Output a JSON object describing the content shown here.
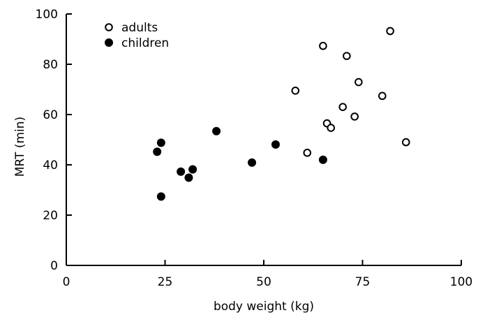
{
  "chart_data": {
    "type": "scatter",
    "title": "",
    "xlabel": "body weight (kg)",
    "ylabel": "MRT (min)",
    "xlim": [
      0,
      100
    ],
    "ylim": [
      0,
      100
    ],
    "xticks": [
      0,
      25,
      50,
      75,
      100
    ],
    "yticks": [
      0,
      20,
      40,
      60,
      80,
      100
    ],
    "grid": false,
    "legend_position": "top-left",
    "series": [
      {
        "name": "adults",
        "marker": "open-circle",
        "color": "#000000",
        "points": [
          {
            "x": 58,
            "y": 69.5
          },
          {
            "x": 61,
            "y": 44.8
          },
          {
            "x": 65,
            "y": 87.3
          },
          {
            "x": 66,
            "y": 56.5
          },
          {
            "x": 67,
            "y": 54.7
          },
          {
            "x": 70,
            "y": 63.0
          },
          {
            "x": 71,
            "y": 83.3
          },
          {
            "x": 73,
            "y": 59.2
          },
          {
            "x": 74,
            "y": 72.9
          },
          {
            "x": 80,
            "y": 67.4
          },
          {
            "x": 82,
            "y": 93.2
          },
          {
            "x": 86,
            "y": 49.0
          }
        ]
      },
      {
        "name": "children",
        "marker": "filled-circle",
        "color": "#000000",
        "points": [
          {
            "x": 23,
            "y": 45.2
          },
          {
            "x": 24,
            "y": 48.8
          },
          {
            "x": 24,
            "y": 27.4
          },
          {
            "x": 29,
            "y": 37.3
          },
          {
            "x": 31,
            "y": 34.9
          },
          {
            "x": 32,
            "y": 38.2
          },
          {
            "x": 38,
            "y": 53.4
          },
          {
            "x": 47,
            "y": 40.9
          },
          {
            "x": 53,
            "y": 48.1
          },
          {
            "x": 65,
            "y": 42.0
          }
        ]
      }
    ]
  }
}
